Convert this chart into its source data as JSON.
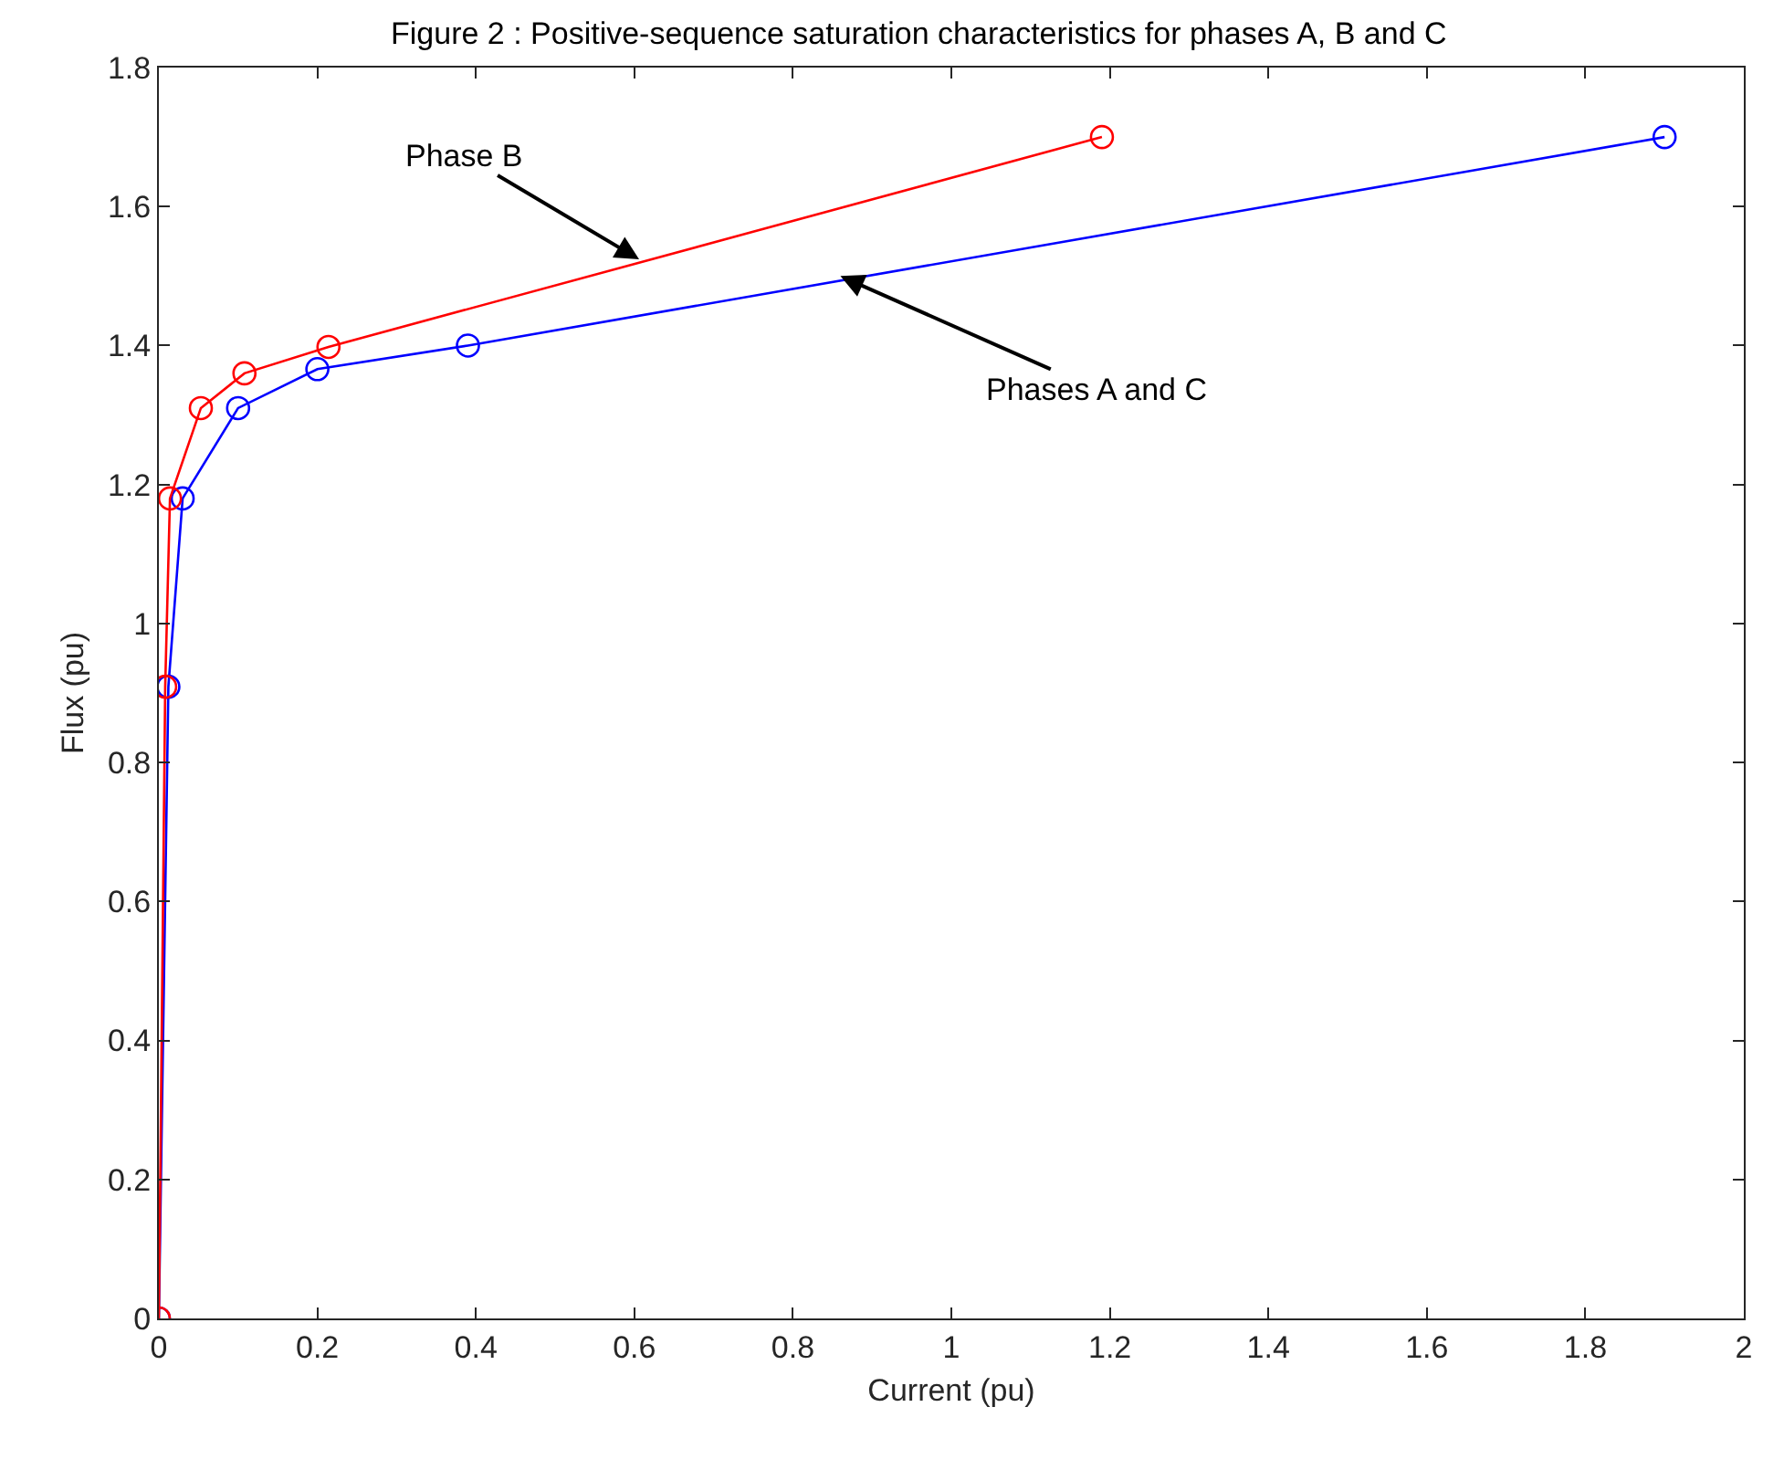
{
  "chart_data": {
    "type": "line",
    "title": "Figure 2 : Positive-sequence saturation characteristics for phases A, B and C",
    "xlabel": "Current (pu)",
    "ylabel": "Flux (pu)",
    "series": [
      {
        "color": "#0000ff",
        "x": [
          0,
          0.012,
          0.03,
          0.1,
          0.2,
          0.39,
          1.9
        ],
        "values": [
          0,
          0.909,
          1.18,
          1.31,
          1.366,
          1.4,
          1.7
        ]
      },
      {
        "color": "#ff0000",
        "x": [
          0,
          0.008,
          0.014,
          0.053,
          0.108,
          0.214,
          1.19
        ],
        "values": [
          0,
          0.909,
          1.18,
          1.31,
          1.36,
          1.398,
          1.7
        ]
      }
    ],
    "annotations": [
      {
        "text": "Phase B",
        "x": 0.606,
        "y": 1.524
      },
      {
        "text": "Phases A and C",
        "x": 0.86,
        "y": 1.5
      }
    ],
    "xlim": [
      0,
      2
    ],
    "xticks": [
      0,
      0.2,
      0.4,
      0.6,
      0.8,
      1,
      1.2,
      1.4,
      1.6,
      1.8,
      2
    ],
    "ylim": [
      0,
      1.8
    ],
    "yticks": [
      0,
      0.2,
      0.4,
      0.6,
      0.8,
      1,
      1.2,
      1.4,
      1.6,
      1.8
    ],
    "legend": false,
    "marker": "circle",
    "line_style": "solid"
  }
}
